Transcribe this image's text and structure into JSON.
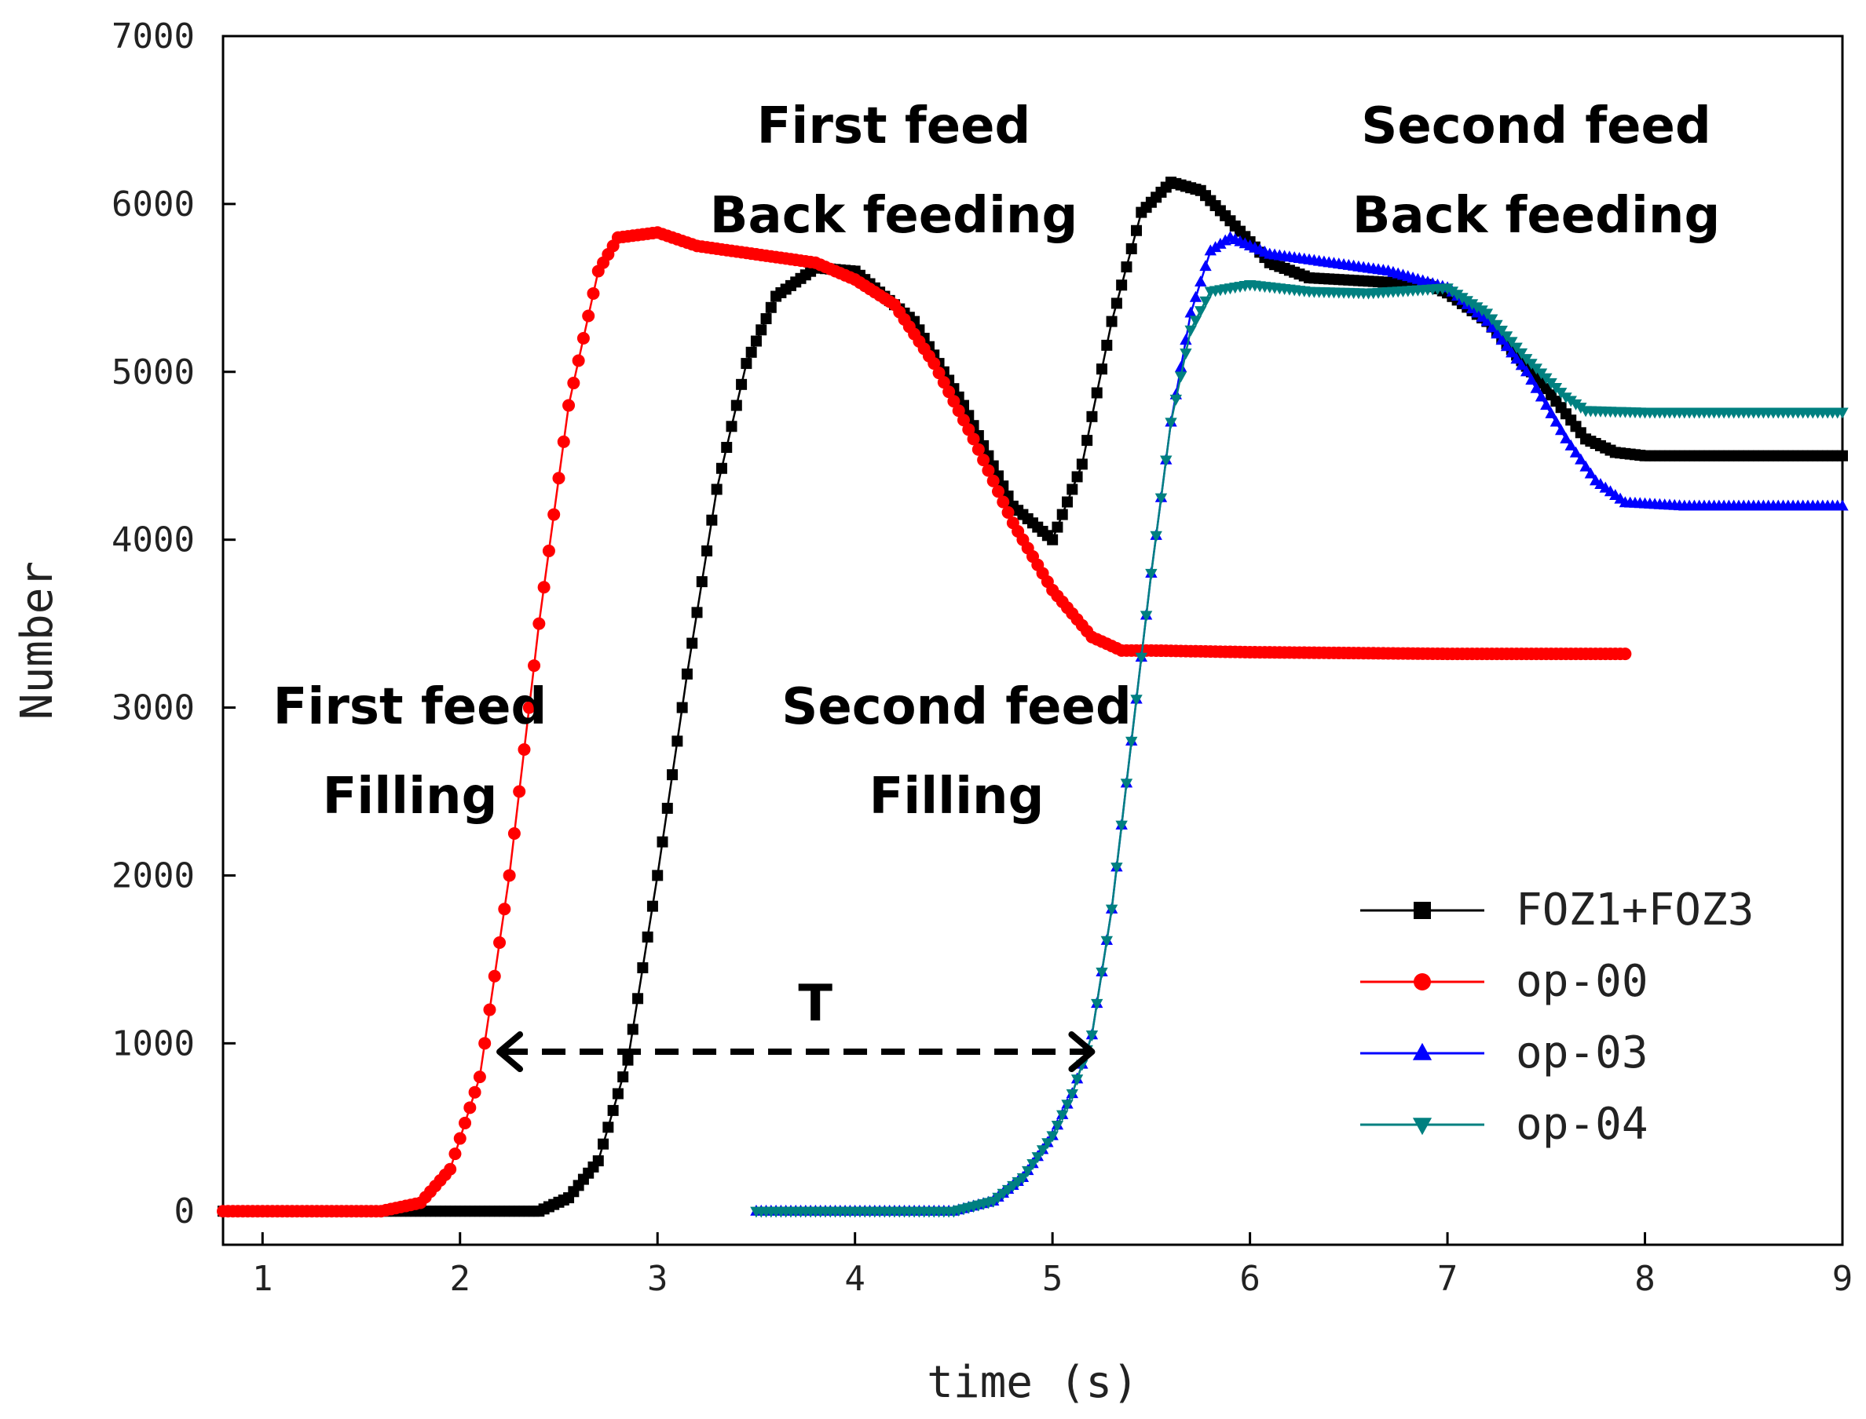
{
  "chart_data": {
    "type": "line",
    "title": "",
    "xlabel": "time (s)",
    "ylabel": "Number",
    "xlim": [
      0.8,
      9
    ],
    "ylim": [
      -200,
      7000
    ],
    "xticks": [
      "1",
      "2",
      "3",
      "4",
      "5",
      "6",
      "7",
      "8",
      "9"
    ],
    "yticks": [
      "0",
      "1000",
      "2000",
      "3000",
      "4000",
      "5000",
      "6000",
      "7000"
    ],
    "grid": false,
    "legend_position": "lower-right",
    "series": [
      {
        "name": "FOZ1+FOZ3",
        "color": "#000000",
        "marker": "square",
        "x": [
          0.8,
          2.4,
          2.55,
          2.7,
          2.85,
          3.0,
          3.15,
          3.3,
          3.45,
          3.6,
          3.8,
          4.0,
          4.3,
          4.55,
          4.8,
          5.0,
          5.15,
          5.3,
          5.45,
          5.6,
          5.75,
          5.9,
          6.1,
          6.3,
          6.6,
          6.9,
          7.0,
          7.2,
          7.5,
          7.7,
          7.85,
          8.0,
          8.5,
          9.0
        ],
        "y": [
          0,
          0,
          80,
          300,
          900,
          2000,
          3200,
          4300,
          5050,
          5450,
          5620,
          5600,
          5300,
          4800,
          4200,
          4000,
          4450,
          5300,
          5950,
          6130,
          6080,
          5900,
          5650,
          5560,
          5540,
          5520,
          5470,
          5300,
          4900,
          4600,
          4520,
          4500,
          4500,
          4500
        ]
      },
      {
        "name": "op-00",
        "color": "#ff0000",
        "marker": "circle",
        "x": [
          0.8,
          1.6,
          1.8,
          1.95,
          2.1,
          2.25,
          2.4,
          2.55,
          2.7,
          2.8,
          3.0,
          3.2,
          3.5,
          3.8,
          4.0,
          4.2,
          4.4,
          4.6,
          4.8,
          5.0,
          5.2,
          5.35,
          5.5,
          6.0,
          7.0,
          7.9
        ],
        "y": [
          0,
          0,
          50,
          250,
          800,
          2000,
          3500,
          4800,
          5600,
          5800,
          5830,
          5750,
          5700,
          5650,
          5550,
          5400,
          5050,
          4600,
          4100,
          3700,
          3420,
          3340,
          3340,
          3330,
          3320,
          3320
        ],
        "point_annotation": {
          "text": "T"
        }
      },
      {
        "name": "op-03",
        "color": "#0000ff",
        "marker": "triangle-up",
        "x": [
          3.5,
          4.5,
          4.7,
          4.85,
          5.0,
          5.1,
          5.2,
          5.3,
          5.4,
          5.5,
          5.6,
          5.7,
          5.8,
          5.9,
          6.1,
          6.4,
          6.7,
          7.0,
          7.2,
          7.4,
          7.6,
          7.75,
          7.9,
          8.2,
          9.0
        ],
        "y": [
          0,
          0,
          60,
          200,
          450,
          700,
          1050,
          1800,
          2800,
          3800,
          4700,
          5350,
          5720,
          5800,
          5700,
          5650,
          5600,
          5500,
          5300,
          5000,
          4600,
          4350,
          4220,
          4200,
          4200
        ]
      },
      {
        "name": "op-04",
        "color": "#008080",
        "marker": "triangle-down",
        "x": [
          3.5,
          4.5,
          4.7,
          4.85,
          5.0,
          5.1,
          5.2,
          5.3,
          5.4,
          5.5,
          5.6,
          5.7,
          5.8,
          6.0,
          6.3,
          6.6,
          7.0,
          7.2,
          7.4,
          7.6,
          7.7,
          8.0,
          9.0
        ],
        "y": [
          0,
          0,
          60,
          200,
          450,
          700,
          1050,
          1800,
          2800,
          3800,
          4700,
          5250,
          5480,
          5520,
          5480,
          5470,
          5500,
          5350,
          5080,
          4850,
          4770,
          4760,
          4760
        ]
      }
    ],
    "annotations": [
      {
        "lines": [
          "First feed",
          "Filling"
        ]
      },
      {
        "lines": [
          "First feed",
          "Back feeding"
        ]
      },
      {
        "lines": [
          "Second feed",
          "Filling"
        ]
      },
      {
        "lines": [
          "Second feed",
          "Back feeding"
        ]
      }
    ],
    "arrow": {
      "label": "T",
      "x_start": 2.2,
      "x_end": 5.2,
      "y": 950
    }
  }
}
